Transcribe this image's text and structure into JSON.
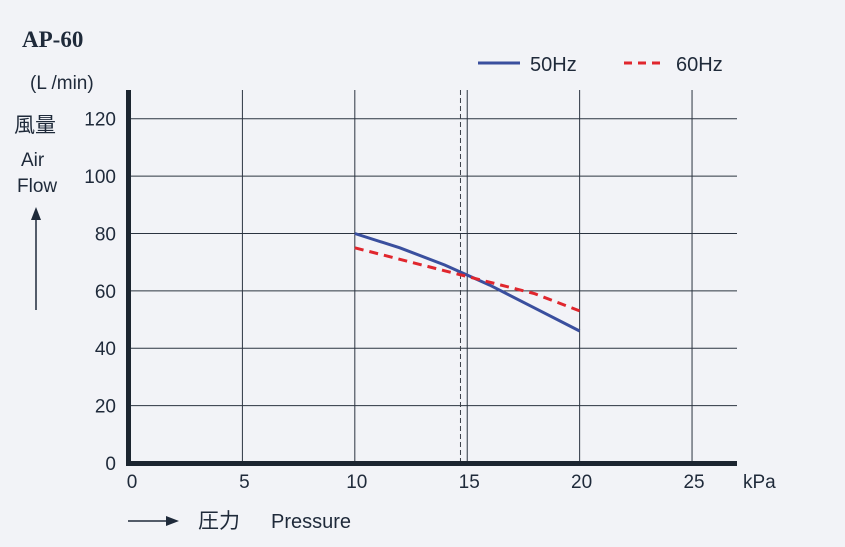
{
  "chart_data": {
    "type": "line",
    "title": "AP-60",
    "ylabel_unit": "(L /min)",
    "ylabel_jp": "風量",
    "ylabel_en_line1": "Air",
    "ylabel_en_line2": "Flow",
    "xlabel_jp": "圧力",
    "xlabel_en": "Pressure",
    "x_unit": "kPa",
    "xlim": [
      0,
      27
    ],
    "ylim": [
      0,
      130
    ],
    "x_ticks": [
      0,
      5,
      10,
      15,
      20,
      25
    ],
    "y_ticks": [
      0,
      20,
      40,
      60,
      80,
      100,
      120
    ],
    "grid": true,
    "legend_position": "top-right",
    "reference_line_x": 14.7,
    "series": [
      {
        "name": "50Hz",
        "color": "#3a4f9e",
        "style": "solid",
        "points": [
          [
            10,
            80
          ],
          [
            12,
            75
          ],
          [
            14,
            69
          ],
          [
            16,
            62
          ],
          [
            18,
            54
          ],
          [
            20,
            46
          ]
        ]
      },
      {
        "name": "60Hz",
        "color": "#e0262d",
        "style": "dashed",
        "points": [
          [
            10,
            75
          ],
          [
            12,
            71
          ],
          [
            14,
            67
          ],
          [
            16,
            63
          ],
          [
            18,
            59
          ],
          [
            20,
            53
          ]
        ]
      }
    ]
  }
}
